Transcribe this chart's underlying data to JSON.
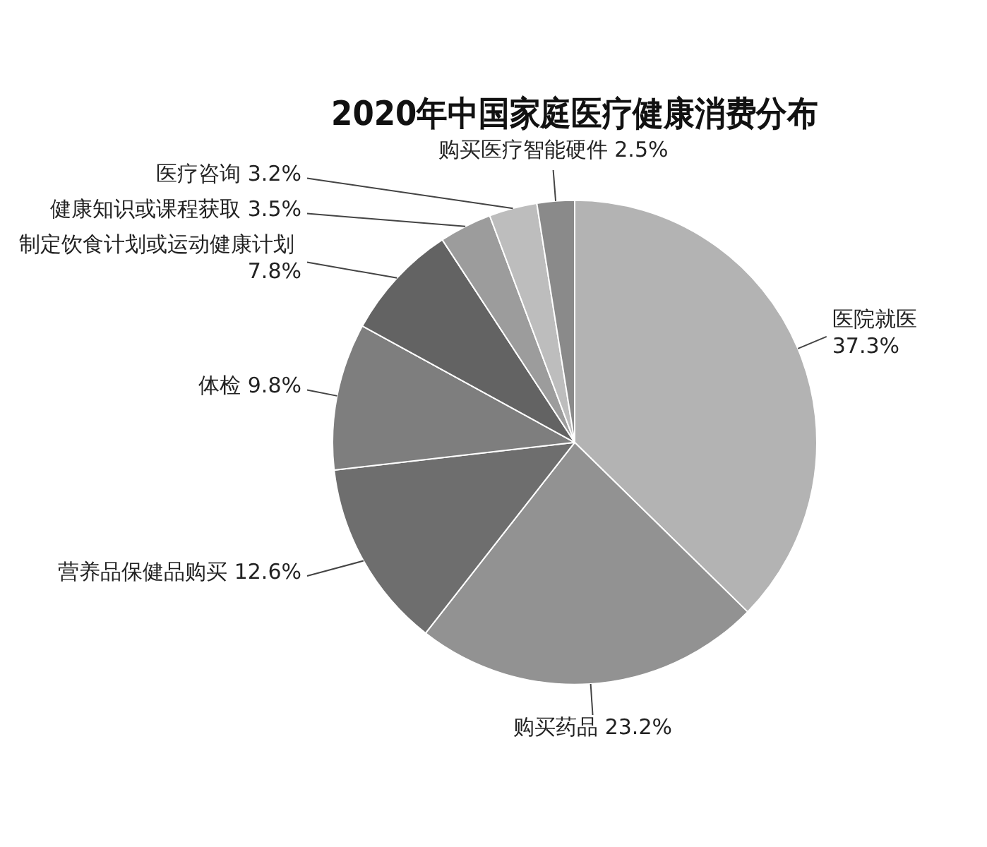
{
  "chart_data": {
    "type": "pie",
    "title": "2020年中国家庭医疗健康消费分布",
    "categories": [
      "医院就医",
      "购买药品",
      "营养品保健品购买",
      "体检",
      "制定饮食计划或运动健康计划",
      "健康知识或课程获取",
      "医疗咨询",
      "购买医疗智能硬件"
    ],
    "values": [
      37.3,
      23.2,
      12.6,
      9.8,
      7.8,
      3.5,
      3.2,
      2.5
    ],
    "value_labels": [
      "37.3%",
      "23.2%",
      "12.6%",
      "9.8%",
      "7.8%",
      "3.5%",
      "3.2%",
      "2.5%"
    ],
    "colors": [
      "#b3b3b3",
      "#929292",
      "#6e6e6e",
      "#7e7e7e",
      "#636363",
      "#9c9c9c",
      "#bdbdbd",
      "#8a8a8a"
    ],
    "legend": false
  }
}
